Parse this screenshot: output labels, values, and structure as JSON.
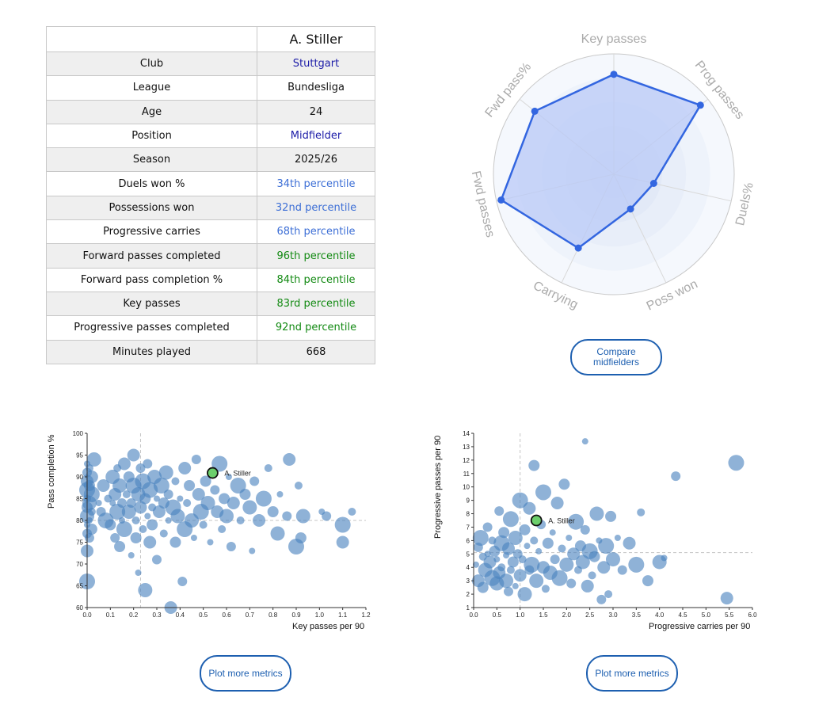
{
  "table": {
    "player": "A. Stiller",
    "rows": [
      {
        "label": "Club",
        "value": "Stuttgart",
        "color": "#1c1ca8"
      },
      {
        "label": "League",
        "value": "Bundesliga",
        "color": "#111111"
      },
      {
        "label": "Age",
        "value": "24",
        "color": "#111111"
      },
      {
        "label": "Position",
        "value": "Midfielder",
        "color": "#1c1ca8"
      },
      {
        "label": "Season",
        "value": "2025/26",
        "color": "#111111"
      },
      {
        "label": "Duels won %",
        "value": "34th percentile",
        "color": "#3d6fd6"
      },
      {
        "label": "Possessions won",
        "value": "32nd percentile",
        "color": "#3d6fd6"
      },
      {
        "label": "Progressive carries",
        "value": "68th percentile",
        "color": "#3d6fd6"
      },
      {
        "label": "Forward passes completed",
        "value": "96th percentile",
        "color": "#138a13"
      },
      {
        "label": "Forward pass completion %",
        "value": "84th percentile",
        "color": "#138a13"
      },
      {
        "label": "Key passes",
        "value": "83rd percentile",
        "color": "#138a13"
      },
      {
        "label": "Progressive passes completed",
        "value": "92nd percentile",
        "color": "#138a13"
      },
      {
        "label": "Minutes played",
        "value": "668",
        "color": "#111111"
      }
    ]
  },
  "buttons": {
    "compare_line1": "Compare",
    "compare_line2": "midfielders",
    "plot_more_left": "Plot more metrics",
    "plot_more_right": "Plot more metrics"
  },
  "chart_data": [
    {
      "type": "radar",
      "axes": [
        "Key passes",
        "Prog passes",
        "Duels%",
        "Poss won",
        "Carrying",
        "Fwd passes",
        "Fwd pass%"
      ],
      "values": [
        83,
        92,
        34,
        32,
        68,
        96,
        84
      ],
      "range": [
        0,
        100
      ],
      "rings": 5,
      "colors": {
        "fill": "#b9c9f7",
        "line": "#3366e0",
        "point": "#3366e0",
        "label": "#aaaaaa"
      }
    },
    {
      "type": "scatter",
      "title": "",
      "xlabel": "Key passes per 90",
      "ylabel": "Pass completion %",
      "xlim": [
        0,
        1.2
      ],
      "ylim": [
        60,
        100
      ],
      "xticks": [
        "0.0",
        "0.1",
        "0.2",
        "0.3",
        "0.4",
        "0.5",
        "0.6",
        "0.7",
        "0.8",
        "0.9",
        "1.0",
        "1.1",
        "1.2"
      ],
      "yticks": [
        "60",
        "65",
        "70",
        "75",
        "80",
        "85",
        "90",
        "95",
        "100"
      ],
      "xtick_values": [
        0,
        0.1,
        0.2,
        0.3,
        0.4,
        0.5,
        0.6,
        0.7,
        0.8,
        0.9,
        1.0,
        1.1,
        1.2
      ],
      "ytick_values": [
        60,
        65,
        70,
        75,
        80,
        85,
        90,
        95,
        100
      ],
      "ref_x": 0.23,
      "ref_y": 80.0,
      "highlight": {
        "name": "A. Stiller",
        "x": 0.54,
        "y": 90.9
      },
      "points": [
        [
          0.0,
          93
        ],
        [
          0.0,
          91
        ],
        [
          0.0,
          89
        ],
        [
          0.0,
          87
        ],
        [
          0.0,
          85
        ],
        [
          0.0,
          83
        ],
        [
          0.0,
          81
        ],
        [
          0.0,
          79
        ],
        [
          0.0,
          77
        ],
        [
          0.0,
          73
        ],
        [
          0.0,
          66
        ],
        [
          0.01,
          92
        ],
        [
          0.01,
          88
        ],
        [
          0.01,
          84
        ],
        [
          0.01,
          80
        ],
        [
          0.01,
          76
        ],
        [
          0.02,
          90
        ],
        [
          0.02,
          86
        ],
        [
          0.02,
          82
        ],
        [
          0.02,
          78
        ],
        [
          0.03,
          94
        ],
        [
          0.05,
          84
        ],
        [
          0.06,
          82
        ],
        [
          0.07,
          88
        ],
        [
          0.08,
          80
        ],
        [
          0.09,
          85
        ],
        [
          0.1,
          79
        ],
        [
          0.11,
          90
        ],
        [
          0.11,
          84
        ],
        [
          0.12,
          76
        ],
        [
          0.12,
          86
        ],
        [
          0.13,
          82
        ],
        [
          0.13,
          92
        ],
        [
          0.14,
          74
        ],
        [
          0.14,
          88
        ],
        [
          0.15,
          80
        ],
        [
          0.15,
          84
        ],
        [
          0.16,
          93
        ],
        [
          0.16,
          78
        ],
        [
          0.17,
          86
        ],
        [
          0.18,
          90
        ],
        [
          0.18,
          82
        ],
        [
          0.19,
          72
        ],
        [
          0.19,
          84
        ],
        [
          0.2,
          95
        ],
        [
          0.2,
          88
        ],
        [
          0.21,
          80
        ],
        [
          0.21,
          76
        ],
        [
          0.22,
          86
        ],
        [
          0.22,
          68
        ],
        [
          0.23,
          92
        ],
        [
          0.23,
          83
        ],
        [
          0.24,
          89
        ],
        [
          0.24,
          78
        ],
        [
          0.25,
          85
        ],
        [
          0.25,
          64
        ],
        [
          0.26,
          81
        ],
        [
          0.26,
          93
        ],
        [
          0.27,
          75
        ],
        [
          0.27,
          87
        ],
        [
          0.28,
          83
        ],
        [
          0.28,
          79
        ],
        [
          0.29,
          90
        ],
        [
          0.3,
          85
        ],
        [
          0.3,
          71
        ],
        [
          0.31,
          82
        ],
        [
          0.32,
          88
        ],
        [
          0.33,
          77
        ],
        [
          0.33,
          84
        ],
        [
          0.34,
          91
        ],
        [
          0.35,
          80
        ],
        [
          0.35,
          86
        ],
        [
          0.36,
          60
        ],
        [
          0.37,
          83
        ],
        [
          0.38,
          89
        ],
        [
          0.38,
          75
        ],
        [
          0.39,
          81
        ],
        [
          0.4,
          85
        ],
        [
          0.41,
          66
        ],
        [
          0.42,
          92
        ],
        [
          0.42,
          78
        ],
        [
          0.43,
          84
        ],
        [
          0.44,
          88
        ],
        [
          0.45,
          80
        ],
        [
          0.46,
          76
        ],
        [
          0.47,
          94
        ],
        [
          0.48,
          86
        ],
        [
          0.49,
          82
        ],
        [
          0.5,
          79
        ],
        [
          0.51,
          89
        ],
        [
          0.52,
          84
        ],
        [
          0.53,
          75
        ],
        [
          0.55,
          87
        ],
        [
          0.56,
          82
        ],
        [
          0.57,
          93
        ],
        [
          0.58,
          78
        ],
        [
          0.59,
          85
        ],
        [
          0.6,
          81
        ],
        [
          0.61,
          90
        ],
        [
          0.62,
          74
        ],
        [
          0.63,
          84
        ],
        [
          0.65,
          88
        ],
        [
          0.66,
          80
        ],
        [
          0.68,
          86
        ],
        [
          0.7,
          83
        ],
        [
          0.71,
          73
        ],
        [
          0.72,
          89
        ],
        [
          0.74,
          80
        ],
        [
          0.76,
          85
        ],
        [
          0.78,
          92
        ],
        [
          0.8,
          82
        ],
        [
          0.82,
          77
        ],
        [
          0.83,
          86
        ],
        [
          0.86,
          81
        ],
        [
          0.87,
          94
        ],
        [
          0.9,
          74
        ],
        [
          0.91,
          88
        ],
        [
          0.92,
          76
        ],
        [
          0.93,
          81
        ],
        [
          1.01,
          82
        ],
        [
          1.03,
          81
        ],
        [
          1.1,
          75
        ],
        [
          1.1,
          79
        ],
        [
          1.14,
          82
        ]
      ]
    },
    {
      "type": "scatter",
      "title": "",
      "xlabel": "Progressive carries per 90",
      "ylabel": "Progressive passes per 90",
      "xlim": [
        0,
        6
      ],
      "ylim": [
        1,
        14
      ],
      "xticks": [
        "0.0",
        "0.5",
        "1.0",
        "1.5",
        "2.0",
        "2.5",
        "3.0",
        "3.5",
        "4.0",
        "4.5",
        "5.0",
        "5.5",
        "6.0"
      ],
      "yticks": [
        "1",
        "2",
        "3",
        "4",
        "5",
        "6",
        "7",
        "8",
        "9",
        "10",
        "11",
        "12",
        "13",
        "14"
      ],
      "xtick_values": [
        0,
        0.5,
        1,
        1.5,
        2,
        2.5,
        3,
        3.5,
        4,
        4.5,
        5,
        5.5,
        6
      ],
      "ytick_values": [
        1,
        2,
        3,
        4,
        5,
        6,
        7,
        8,
        9,
        10,
        11,
        12,
        13,
        14
      ],
      "ref_x": 1.0,
      "ref_y": 5.1,
      "highlight": {
        "name": "A. Stiller",
        "x": 1.35,
        "y": 7.5
      },
      "points": [
        [
          0.05,
          4.2
        ],
        [
          0.1,
          5.5
        ],
        [
          0.1,
          3.0
        ],
        [
          0.15,
          6.2
        ],
        [
          0.2,
          4.8
        ],
        [
          0.2,
          2.5
        ],
        [
          0.25,
          3.8
        ],
        [
          0.3,
          5.0
        ],
        [
          0.3,
          7.0
        ],
        [
          0.35,
          4.4
        ],
        [
          0.4,
          3.2
        ],
        [
          0.4,
          6.0
        ],
        [
          0.45,
          5.2
        ],
        [
          0.5,
          2.8
        ],
        [
          0.5,
          4.6
        ],
        [
          0.55,
          8.2
        ],
        [
          0.55,
          3.6
        ],
        [
          0.6,
          5.8
        ],
        [
          0.6,
          4.0
        ],
        [
          0.65,
          6.6
        ],
        [
          0.7,
          3.0
        ],
        [
          0.7,
          4.9
        ],
        [
          0.75,
          2.2
        ],
        [
          0.75,
          5.4
        ],
        [
          0.8,
          7.6
        ],
        [
          0.8,
          3.8
        ],
        [
          0.85,
          4.4
        ],
        [
          0.9,
          6.2
        ],
        [
          0.9,
          2.6
        ],
        [
          0.95,
          5.0
        ],
        [
          1.0,
          3.4
        ],
        [
          1.0,
          9.0
        ],
        [
          1.05,
          4.6
        ],
        [
          1.1,
          6.8
        ],
        [
          1.1,
          2.0
        ],
        [
          1.15,
          5.6
        ],
        [
          1.2,
          3.8
        ],
        [
          1.2,
          8.4
        ],
        [
          1.25,
          4.2
        ],
        [
          1.3,
          6.0
        ],
        [
          1.3,
          11.6
        ],
        [
          1.35,
          3.0
        ],
        [
          1.4,
          5.2
        ],
        [
          1.45,
          7.2
        ],
        [
          1.5,
          4.0
        ],
        [
          1.5,
          9.6
        ],
        [
          1.55,
          2.4
        ],
        [
          1.6,
          5.8
        ],
        [
          1.65,
          3.6
        ],
        [
          1.7,
          6.6
        ],
        [
          1.75,
          4.6
        ],
        [
          1.8,
          8.8
        ],
        [
          1.85,
          3.2
        ],
        [
          1.9,
          5.4
        ],
        [
          1.95,
          10.2
        ],
        [
          2.0,
          4.2
        ],
        [
          2.05,
          6.2
        ],
        [
          2.1,
          2.8
        ],
        [
          2.15,
          5.0
        ],
        [
          2.2,
          7.4
        ],
        [
          2.25,
          3.8
        ],
        [
          2.3,
          5.6
        ],
        [
          2.35,
          4.4
        ],
        [
          2.4,
          13.4
        ],
        [
          2.4,
          6.8
        ],
        [
          2.45,
          2.6
        ],
        [
          2.5,
          5.2
        ],
        [
          2.55,
          3.4
        ],
        [
          2.6,
          4.8
        ],
        [
          2.65,
          8.0
        ],
        [
          2.7,
          6.0
        ],
        [
          2.75,
          1.6
        ],
        [
          2.8,
          4.0
        ],
        [
          2.85,
          5.6
        ],
        [
          2.9,
          2.0
        ],
        [
          2.95,
          7.8
        ],
        [
          3.0,
          4.6
        ],
        [
          3.1,
          6.2
        ],
        [
          3.2,
          3.8
        ],
        [
          3.35,
          5.8
        ],
        [
          3.5,
          4.2
        ],
        [
          3.6,
          8.1
        ],
        [
          3.75,
          3.0
        ],
        [
          4.0,
          4.4
        ],
        [
          4.1,
          4.7
        ],
        [
          4.35,
          10.8
        ],
        [
          5.45,
          1.7
        ],
        [
          5.65,
          11.8
        ]
      ]
    }
  ]
}
